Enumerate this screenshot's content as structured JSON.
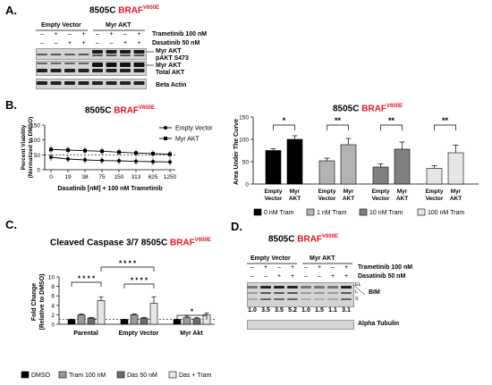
{
  "panels": {
    "a": "A.",
    "b": "B.",
    "c": "C.",
    "d": "D."
  },
  "titles": {
    "cell_line": "8505C",
    "braf": "BRAF",
    "mutation": "V600E",
    "caspase_prefix": "Cleaved Caspase 3/7 8505C"
  },
  "panel_a": {
    "groups": [
      "Empty Vector",
      "Myr AKT"
    ],
    "treatments": [
      "Trametinib 100 nM",
      "Dasatinib 50 nM"
    ],
    "tram_signs": [
      "–",
      "+",
      "–",
      "+",
      "–",
      "+",
      "–",
      "+"
    ],
    "das_signs": [
      "–",
      "–",
      "+",
      "+",
      "–",
      "–",
      "+",
      "+"
    ],
    "blot_labels": {
      "pakt1": "Myr AKT",
      "pakt2": "pAKT S473",
      "takt1": "Myr AKT",
      "takt2": "Total AKT",
      "actin": "Beta Actin"
    }
  },
  "panel_b": {
    "line_chart": {
      "ylabel_1": "Percent Viability",
      "ylabel_2": "(Normalized to DMSO)",
      "xlabel": "Dasatinib [nM] + 100 nM Trametinib",
      "legend": [
        "Empty Vector",
        "Myr AKT"
      ]
    },
    "auc_chart": {
      "ylabel": "Area Under The Curve",
      "group_labels": [
        [
          "Empty",
          "Vector"
        ],
        [
          "Myr",
          "AKT"
        ]
      ],
      "legend": [
        "0 nM Tram",
        "1 nM Tram",
        "10 nM Tram",
        "100 nM Tram"
      ],
      "significance": [
        "*",
        "**",
        "**",
        "**"
      ]
    }
  },
  "panel_c": {
    "ylabel_1": "Fold Change",
    "ylabel_2": "(Relative to DMSO)",
    "groups": [
      "Parental",
      "Empty Vector",
      "Myr Akt"
    ],
    "legend": [
      "DMSO",
      "Tram 100 nM",
      "Das 50 nM",
      "Das + Tram"
    ],
    "significance": [
      "* * * *",
      "* * * *",
      "* * * *",
      "*"
    ]
  },
  "panel_d": {
    "groups": [
      "Empty Vector",
      "Myr AKT"
    ],
    "treatments": [
      "Trametinib 100 nM",
      "Dasatinib 50 nM"
    ],
    "tram_signs": [
      "–",
      "+",
      "–",
      "+",
      "–",
      "+",
      "–",
      "+"
    ],
    "das_signs": [
      "–",
      "–",
      "+",
      "+",
      "–",
      "–",
      "+",
      "+"
    ],
    "bim_isoforms": [
      "EL",
      "L",
      "S"
    ],
    "bim_label": "BIM",
    "quant": [
      "1.0",
      "3.5",
      "3.5",
      "5.2",
      "1.0",
      "1.5",
      "1.1",
      "3.1"
    ],
    "loading": "Alpha Tubulin"
  },
  "chart_data": [
    {
      "type": "line",
      "x": [
        "0",
        "19",
        "38",
        "75",
        "150",
        "313",
        "625",
        "1250"
      ],
      "series": [
        {
          "name": "Empty Vector",
          "values": [
            42,
            36,
            33,
            31,
            30,
            28,
            27,
            26
          ]
        },
        {
          "name": "Myr AKT",
          "values": [
            68,
            66,
            64,
            62,
            59,
            56,
            54,
            52
          ]
        }
      ],
      "xlabel": "Dasatinib [nM] + 100 nM Trametinib",
      "ylabel": "Percent Viability (Normalized to DMSO)",
      "ylim": [
        0,
        150
      ],
      "yticks": [
        0,
        50,
        100,
        150
      ],
      "reference_line": 50
    },
    {
      "type": "bar",
      "ylabel": "Area Under The Curve",
      "ylim": [
        0,
        150
      ],
      "yticks": [
        0,
        50,
        100,
        150
      ],
      "categories": [
        "0 nM Tram",
        "1 nM Tram",
        "10 nM Tram",
        "100 nM Tram"
      ],
      "series": [
        {
          "name": "Empty Vector",
          "values": [
            75,
            52,
            38,
            35
          ],
          "errors": [
            4,
            6,
            7,
            6
          ]
        },
        {
          "name": "Myr AKT",
          "values": [
            100,
            88,
            78,
            70
          ],
          "errors": [
            8,
            14,
            16,
            17
          ]
        }
      ],
      "significance": [
        "*",
        "**",
        "**",
        "**"
      ]
    },
    {
      "type": "bar",
      "title": "Cleaved Caspase 3/7 8505C BRAF V600E",
      "ylabel": "Fold Change (Relative to DMSO)",
      "ylim": [
        0,
        10
      ],
      "yticks": [
        0,
        2,
        4,
        6,
        8,
        10
      ],
      "categories": [
        "Parental",
        "Empty Vector",
        "Myr Akt"
      ],
      "series": [
        {
          "name": "DMSO",
          "values": [
            1.0,
            1.0,
            1.0
          ],
          "errors": [
            0.05,
            0.05,
            0.05
          ]
        },
        {
          "name": "Tram 100 nM",
          "values": [
            2.0,
            2.0,
            1.4
          ],
          "errors": [
            0.2,
            0.2,
            0.3
          ]
        },
        {
          "name": "Das 50 nM",
          "values": [
            1.3,
            1.3,
            1.2
          ],
          "errors": [
            0.15,
            0.15,
            0.2
          ]
        },
        {
          "name": "Das + Tram",
          "values": [
            5.0,
            4.4,
            2.0
          ],
          "errors": [
            0.8,
            1.4,
            0.4
          ]
        }
      ],
      "reference_line": 1
    }
  ]
}
